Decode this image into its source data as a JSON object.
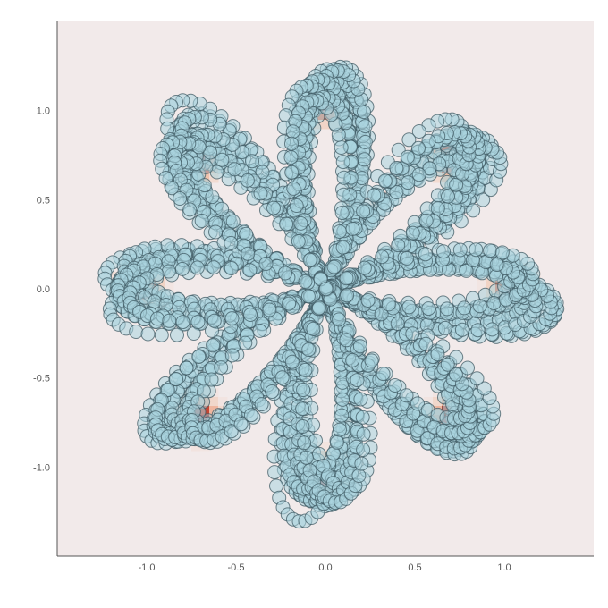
{
  "chart_data": {
    "type": "scatter",
    "title": "",
    "xlabel": "",
    "ylabel": "",
    "xlim": [
      -1.5,
      1.5
    ],
    "ylim": [
      -1.5,
      1.5
    ],
    "grid": false,
    "legend": "none",
    "x_ticks": [
      -1.0,
      -0.5,
      0.0,
      0.5,
      1.0
    ],
    "y_ticks": [
      -1.0,
      -0.5,
      0.0,
      0.5,
      1.0
    ],
    "x_tick_labels": [
      "-1.0",
      "-0.5",
      "0.0",
      "0.5",
      "1.0"
    ],
    "y_tick_labels": [
      "-1.0",
      "-0.5",
      "0.0",
      "0.5",
      "1.0"
    ],
    "background_heatmap": {
      "description_source": "density of the same points",
      "colormap": [
        "#f2eaea",
        "#f1c9b4",
        "#e8795a",
        "#b52a1e",
        "#6e0a1a"
      ],
      "density_peaks": [
        {
          "x": 0.0,
          "y": 1.05
        },
        {
          "x": 0.72,
          "y": 0.72
        },
        {
          "x": 1.05,
          "y": 0.0
        },
        {
          "x": 0.72,
          "y": -0.72
        },
        {
          "x": 0.0,
          "y": -1.05
        },
        {
          "x": -0.72,
          "y": -0.72
        },
        {
          "x": -1.05,
          "y": 0.0
        },
        {
          "x": -0.72,
          "y": 0.72
        }
      ]
    },
    "series": [
      {
        "marker": "circle",
        "marker_fill": "#a9d3de",
        "marker_edge": "#3f5a63",
        "marker_alpha": 0.55,
        "pattern": "eight-petal rose curve, r = cos(4θ) + small jitter, many overlapping strands",
        "petals": 8,
        "strands": 14,
        "points_per_strand": 240,
        "radius_max": 1.2
      }
    ]
  }
}
